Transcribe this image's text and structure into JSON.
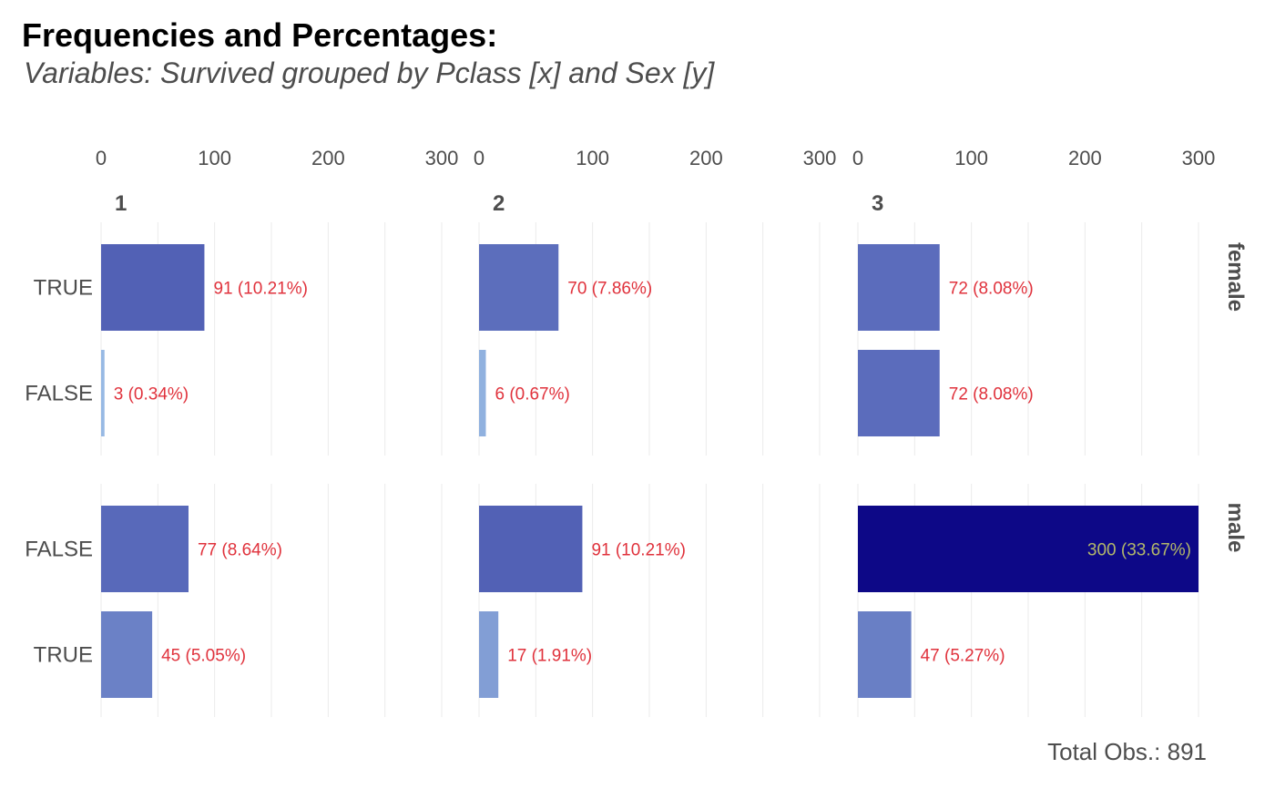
{
  "chart_data": {
    "type": "bar",
    "title": "Frequencies and Percentages:",
    "subtitle": "Variables: Survived grouped by Pclass [x] and Sex [y]",
    "caption": "Total Obs.: 891",
    "xlim": [
      0,
      300
    ],
    "x_ticks": [
      "0",
      "100",
      "200",
      "300"
    ],
    "grid": true,
    "col_facets": [
      "1",
      "2",
      "3"
    ],
    "row_facets": [
      "female",
      "male"
    ],
    "row_categories": {
      "female": [
        "TRUE",
        "FALSE"
      ],
      "male": [
        "FALSE",
        "TRUE"
      ]
    },
    "panels": [
      {
        "col": "1",
        "row": "female",
        "bars": [
          {
            "category": "TRUE",
            "value": 91,
            "label": "91 (10.21%)"
          },
          {
            "category": "FALSE",
            "value": 3,
            "label": "3 (0.34%)"
          }
        ]
      },
      {
        "col": "2",
        "row": "female",
        "bars": [
          {
            "category": "TRUE",
            "value": 70,
            "label": "70 (7.86%)"
          },
          {
            "category": "FALSE",
            "value": 6,
            "label": "6 (0.67%)"
          }
        ]
      },
      {
        "col": "3",
        "row": "female",
        "bars": [
          {
            "category": "TRUE",
            "value": 72,
            "label": "72 (8.08%)"
          },
          {
            "category": "FALSE",
            "value": 72,
            "label": "72 (8.08%)"
          }
        ]
      },
      {
        "col": "1",
        "row": "male",
        "bars": [
          {
            "category": "FALSE",
            "value": 77,
            "label": "77 (8.64%)"
          },
          {
            "category": "TRUE",
            "value": 45,
            "label": "45 (5.05%)"
          }
        ]
      },
      {
        "col": "2",
        "row": "male",
        "bars": [
          {
            "category": "FALSE",
            "value": 91,
            "label": "91 (10.21%)"
          },
          {
            "category": "TRUE",
            "value": 17,
            "label": "17 (1.91%)"
          }
        ]
      },
      {
        "col": "3",
        "row": "male",
        "bars": [
          {
            "category": "FALSE",
            "value": 300,
            "label": "300 (33.67%)"
          },
          {
            "category": "TRUE",
            "value": 47,
            "label": "47 (5.27%)"
          }
        ]
      }
    ],
    "colors": {
      "bar_low": "#a6cdee",
      "bar_high": "#0d0887",
      "label_outside": "#e0323c",
      "label_inside": "#b3b86a",
      "text": "#4d4d4d",
      "grid": "#ebebeb"
    }
  }
}
